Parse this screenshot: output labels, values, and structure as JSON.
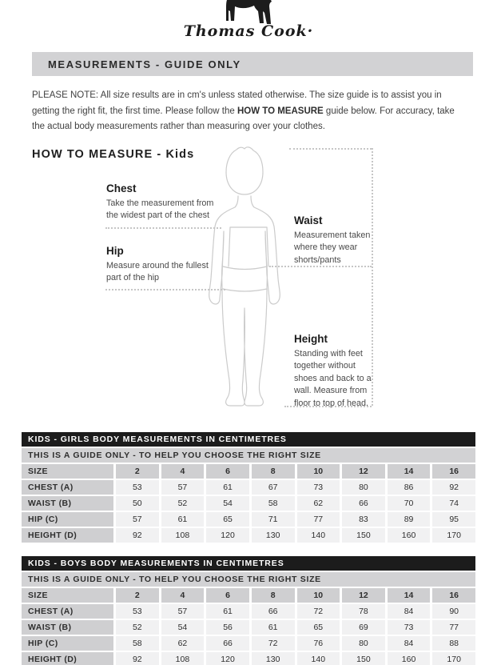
{
  "logo": {
    "brand": "Thomas Cook·"
  },
  "page_header": {
    "title": "MEASUREMENTS - GUIDE ONLY"
  },
  "note": {
    "prefix": "PLEASE NOTE:  All size results are in cm's unless stated otherwise. The size guide is to assist you in getting the right fit, the first time. Please follow the ",
    "bold": "HOW TO MEASURE",
    "suffix": " guide below. For accuracy, take the actual body measurements rather than measuring over your clothes."
  },
  "how_to_measure": {
    "title": "HOW TO MEASURE - Kids",
    "chest": {
      "title": "Chest",
      "description": "Take the measurement from the widest part of the chest"
    },
    "hip": {
      "title": "Hip",
      "description": "Measure around the fullest part of the hip"
    },
    "waist": {
      "title": "Waist",
      "description": "Measurement taken where they wear shorts/pants"
    },
    "height": {
      "title": "Height",
      "description": "Standing with feet together without shoes and back to a wall. Measure from floor to top of head."
    }
  },
  "tables": [
    {
      "title": "KIDS - GIRLS BODY MEASUREMENTS IN CENTIMETRES",
      "subtitle": "THIS IS A GUIDE ONLY - TO HELP YOU CHOOSE THE RIGHT SIZE",
      "size_label": "SIZE",
      "sizes": [
        "2",
        "4",
        "6",
        "8",
        "10",
        "12",
        "14",
        "16"
      ],
      "rows": [
        {
          "label": "CHEST (A)",
          "values": [
            "53",
            "57",
            "61",
            "67",
            "73",
            "80",
            "86",
            "92"
          ]
        },
        {
          "label": "WAIST (B)",
          "values": [
            "50",
            "52",
            "54",
            "58",
            "62",
            "66",
            "70",
            "74"
          ]
        },
        {
          "label": "HIP (C)",
          "values": [
            "57",
            "61",
            "65",
            "71",
            "77",
            "83",
            "89",
            "95"
          ]
        },
        {
          "label": "HEIGHT (D)",
          "values": [
            "92",
            "108",
            "120",
            "130",
            "140",
            "150",
            "160",
            "170"
          ]
        }
      ]
    },
    {
      "title": "KIDS - BOYS BODY MEASUREMENTS IN CENTIMETRES",
      "subtitle": "THIS IS A GUIDE ONLY - TO HELP YOU CHOOSE THE RIGHT SIZE",
      "size_label": "SIZE",
      "sizes": [
        "2",
        "4",
        "6",
        "8",
        "10",
        "12",
        "14",
        "16"
      ],
      "rows": [
        {
          "label": "CHEST (A)",
          "values": [
            "53",
            "57",
            "61",
            "66",
            "72",
            "78",
            "84",
            "90"
          ]
        },
        {
          "label": "WAIST (B)",
          "values": [
            "52",
            "54",
            "56",
            "61",
            "65",
            "69",
            "73",
            "77"
          ]
        },
        {
          "label": "HIP (C)",
          "values": [
            "58",
            "62",
            "66",
            "72",
            "76",
            "80",
            "84",
            "88"
          ]
        },
        {
          "label": "HEIGHT (D)",
          "values": [
            "92",
            "108",
            "120",
            "130",
            "140",
            "150",
            "160",
            "170"
          ]
        }
      ]
    }
  ],
  "colors": {
    "bar_gray": "#d2d2d4",
    "table_header_black": "#1c1c1c",
    "cell_gray": "#cfcfd1",
    "cell_light": "#f1f1f2",
    "figure_outline": "#cbcbcb"
  }
}
